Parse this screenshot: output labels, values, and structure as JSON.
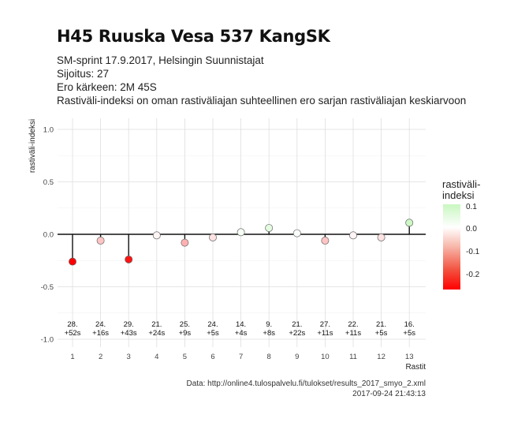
{
  "header": {
    "title": "H45 Ruuska Vesa 537 KangSK",
    "subtitle_lines": [
      "SM-sprint 17.9.2017, Helsingin Suunnistajat",
      "Sijoitus: 27",
      "Ero kärkeen: 2M 45S",
      "Rastiväli-indeksi on oman rastiväliajan suhteellinen ero sarjan rastiväliajan keskiarvoon"
    ]
  },
  "chart_data": {
    "type": "lollipop",
    "xlabel": "Rastit",
    "ylabel": "rastiväli-indeksi",
    "ylim": [
      -1.05,
      1.05
    ],
    "yticks": [
      -1.0,
      -0.5,
      0.0,
      0.5,
      1.0
    ],
    "ytick_labels": [
      "-1.0",
      "-0.5",
      "0.0",
      "0.5",
      "1.0"
    ],
    "x": [
      1,
      2,
      3,
      4,
      5,
      6,
      7,
      8,
      9,
      10,
      11,
      12,
      13
    ],
    "values": [
      -0.26,
      -0.06,
      -0.24,
      -0.01,
      -0.08,
      -0.03,
      0.02,
      0.06,
      0.01,
      -0.06,
      -0.01,
      -0.03,
      0.11
    ],
    "annotations": [
      [
        "28.",
        "+52s"
      ],
      [
        "24.",
        "+16s"
      ],
      [
        "29.",
        "+43s"
      ],
      [
        "21.",
        "+24s"
      ],
      [
        "25.",
        "+9s"
      ],
      [
        "24.",
        "+5s"
      ],
      [
        "14.",
        "+4s"
      ],
      [
        "9.",
        "+8s"
      ],
      [
        "21.",
        "+22s"
      ],
      [
        "27.",
        "+11s"
      ],
      [
        "22.",
        "+11s"
      ],
      [
        "21.",
        "+5s"
      ],
      [
        "16.",
        "+5s"
      ]
    ],
    "grid": true,
    "legend": {
      "title_lines": [
        "rastiväli-",
        "indeksi"
      ],
      "labels": [
        "0.1",
        "0.0",
        "-0.1",
        "-0.2"
      ],
      "position": "right",
      "colors": {
        "high": "#c8f7c0",
        "mid": "#ffffff",
        "low": "#ff0000"
      }
    }
  },
  "caption": {
    "source": "Data: http://online4.tulospalvelu.fi/tulokset/results_2017_smyo_2.xml",
    "timestamp": "2017-09-24 21:43:13"
  }
}
